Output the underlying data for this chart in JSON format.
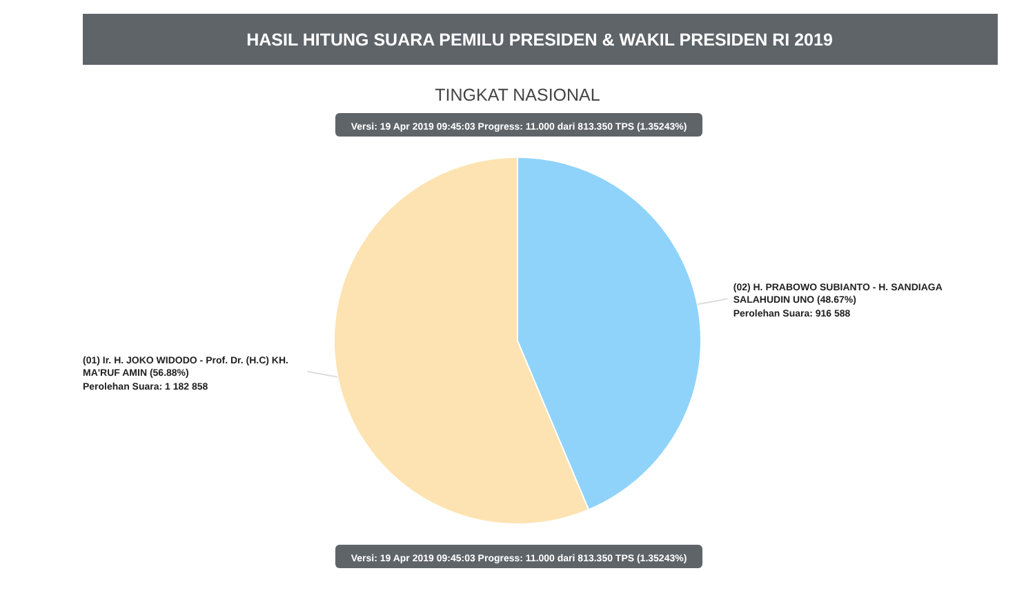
{
  "chart_data": {
    "type": "pie",
    "title": "HASIL HITUNG SUARA PEMILU PRESIDEN & WAKIL PRESIDEN RI 2019",
    "subtitle": "TINGKAT NASIONAL",
    "categories": [
      "(01) Ir. H. JOKO WIDODO - Prof. Dr. (H.C) KH. MA'RUF AMIN (56.88%)",
      "(02) H. PRABOWO SUBIANTO - H. SANDIAGA SALAHUDIN UNO (48.67%)"
    ],
    "values": [
      1182858,
      916588
    ],
    "colors": [
      "#fde3b1",
      "#8fd3fb"
    ],
    "value_labels": [
      "Perolehan Suara: 1 182 858",
      "Perolehan Suara: 916 588"
    ],
    "annotations": [
      "Versi: 19 Apr 2019 09:45:03 Progress: 11.000 dari 813.350 TPS (1.35243%)",
      "Versi: 19 Apr 2019 09:45:03 Progress: 11.000 dari 813.350 TPS (1.35243%)"
    ]
  }
}
